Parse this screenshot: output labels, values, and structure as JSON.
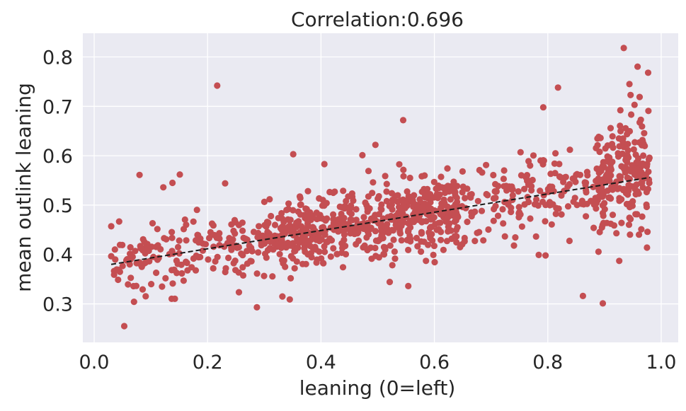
{
  "chart_data": {
    "type": "scatter",
    "title": "Correlation:0.696",
    "xlabel": "leaning (0=left)",
    "ylabel": "mean outlink leaning",
    "xlim": [
      -0.02,
      1.03
    ],
    "ylim": [
      0.222,
      0.848
    ],
    "xticks": [
      0.0,
      0.2,
      0.4,
      0.6,
      0.8,
      1.0
    ],
    "xtick_labels": [
      "0.0",
      "0.2",
      "0.4",
      "0.6",
      "0.8",
      "1.0"
    ],
    "yticks": [
      0.3,
      0.4,
      0.5,
      0.6,
      0.7,
      0.8
    ],
    "ytick_labels": [
      "0.3",
      "0.4",
      "0.5",
      "0.6",
      "0.7",
      "0.8"
    ],
    "grid": true,
    "colors": {
      "background": "#eaeaf2",
      "grid": "#ffffff",
      "points": "#c44e52",
      "fit_line": "#1a1a1a"
    },
    "fit_line": {
      "style": "dashed",
      "points": [
        [
          0.03,
          0.38
        ],
        [
          0.98,
          0.556
        ]
      ]
    },
    "point_cloud": {
      "count": 1100,
      "x_range": [
        0.03,
        0.98
      ],
      "cluster_dense_x": [
        0.88,
        0.98
      ]
    },
    "points": [
      [
        0.053,
        0.255
      ],
      [
        0.217,
        0.742
      ],
      [
        0.934,
        0.818
      ],
      [
        0.287,
        0.293
      ],
      [
        0.332,
        0.315
      ],
      [
        0.345,
        0.309
      ],
      [
        0.897,
        0.301
      ],
      [
        0.862,
        0.316
      ],
      [
        0.545,
        0.672
      ],
      [
        0.792,
        0.698
      ],
      [
        0.818,
        0.738
      ],
      [
        0.977,
        0.768
      ],
      [
        0.944,
        0.745
      ],
      [
        0.946,
        0.723
      ],
      [
        0.962,
        0.719
      ],
      [
        0.928,
        0.692
      ],
      [
        0.953,
        0.703
      ],
      [
        0.08,
        0.561
      ],
      [
        0.151,
        0.562
      ],
      [
        0.138,
        0.545
      ],
      [
        0.122,
        0.536
      ],
      [
        0.231,
        0.544
      ],
      [
        0.351,
        0.603
      ],
      [
        0.473,
        0.601
      ],
      [
        0.496,
        0.622
      ],
      [
        0.406,
        0.583
      ],
      [
        0.752,
        0.607
      ],
      [
        0.812,
        0.584
      ],
      [
        0.839,
        0.612
      ],
      [
        0.554,
        0.336
      ],
      [
        0.784,
        0.399
      ],
      [
        0.796,
        0.398
      ],
      [
        0.926,
        0.387
      ],
      [
        0.975,
        0.414
      ],
      [
        0.893,
        0.636
      ],
      [
        0.921,
        0.443
      ],
      [
        0.93,
        0.464
      ]
    ],
    "point_markers": 1
  }
}
